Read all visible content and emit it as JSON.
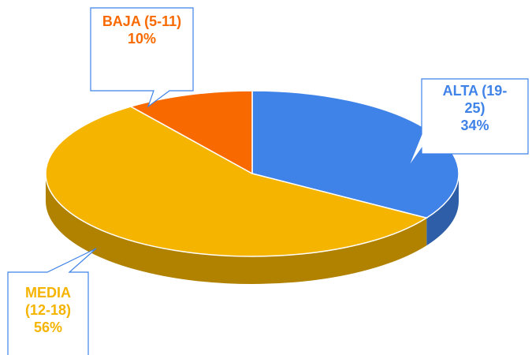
{
  "chart_data": {
    "type": "pie3d",
    "categories": [
      "ALTA (19-25)",
      "MEDIA (12-18)",
      "BAJA (5-11)"
    ],
    "values": [
      34,
      56,
      10
    ],
    "value_labels": [
      "34%",
      "56%",
      "10%"
    ],
    "colors": [
      "#3f82e8",
      "#f5b400",
      "#f86a00"
    ]
  }
}
